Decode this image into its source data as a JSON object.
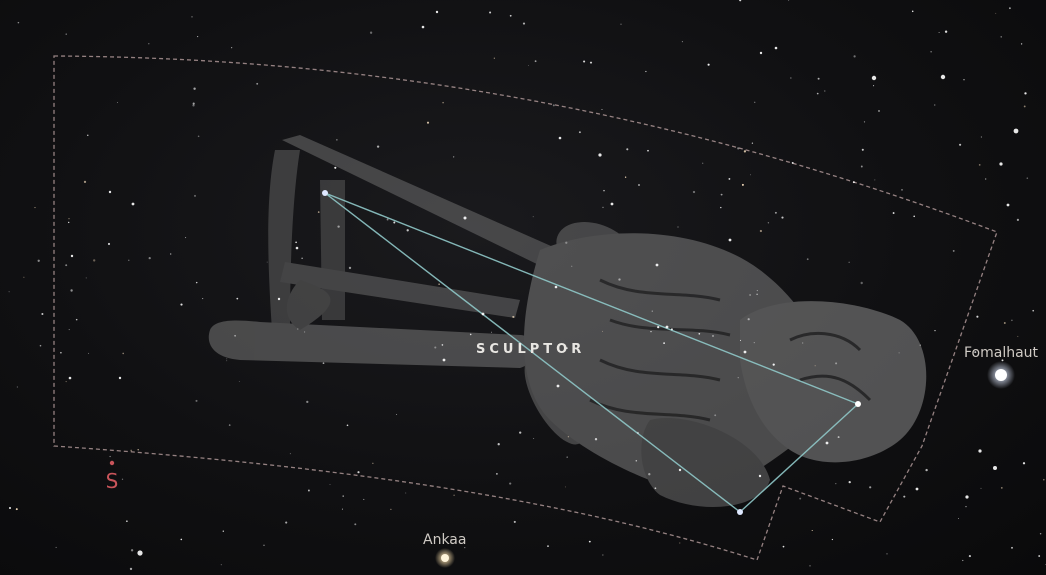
{
  "constellation": {
    "name": "SCULPTOR"
  },
  "labels": {
    "fomalhaut": "Fomalhaut",
    "ankaa": "Ankaa"
  },
  "cardinal": {
    "direction": "S",
    "color": "#c8545a"
  },
  "colors": {
    "sky": "#101012",
    "boundary": "#a48e8e",
    "lines": "#8fc8c8",
    "artwork": "#7a7a7a",
    "star": "#ffffff"
  }
}
